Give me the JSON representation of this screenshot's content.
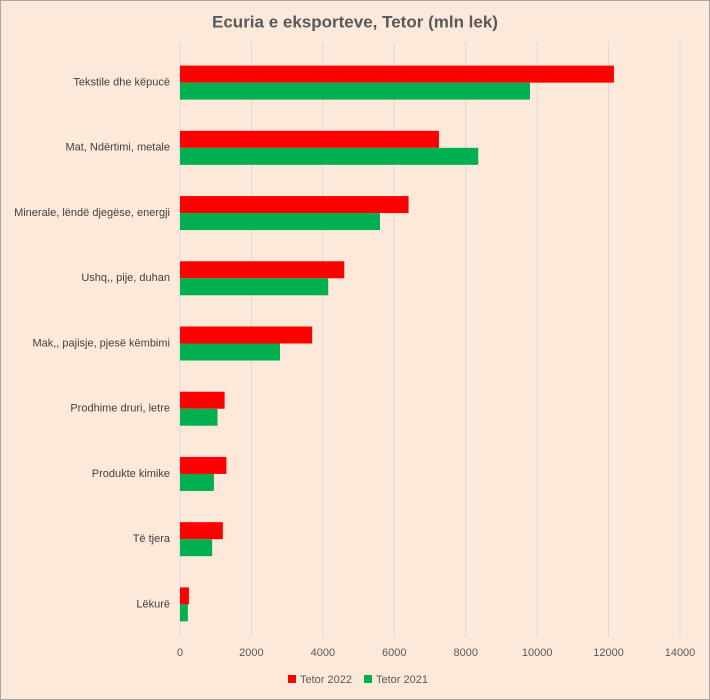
{
  "chart_data": {
    "type": "hbar",
    "title": "Ecuria e eksporteve, Tetor (mln lek)",
    "categories": [
      "Tekstile dhe këpucë",
      "Mat, Ndërtimi, metale",
      "Minerale, lëndë djegëse, energji",
      "Ushq,, pije, duhan",
      "Mak,, pajisje, pjesë këmbimi",
      "Prodhime druri, letre",
      "Produkte kimike",
      "Të tjera",
      "Lëkurë"
    ],
    "series": [
      {
        "name": "Tetor 2022",
        "color": "#ff0000",
        "values": [
          12150,
          7250,
          6400,
          4600,
          3700,
          1250,
          1300,
          1200,
          250
        ]
      },
      {
        "name": "Tetor 2021",
        "color": "#00b050",
        "values": [
          9800,
          8350,
          5600,
          4150,
          2800,
          1050,
          950,
          900,
          220
        ]
      }
    ],
    "xlim": [
      0,
      14000
    ],
    "xticks": [
      0,
      2000,
      4000,
      6000,
      8000,
      10000,
      12000,
      14000
    ],
    "grid": true,
    "legend": "bottom"
  }
}
